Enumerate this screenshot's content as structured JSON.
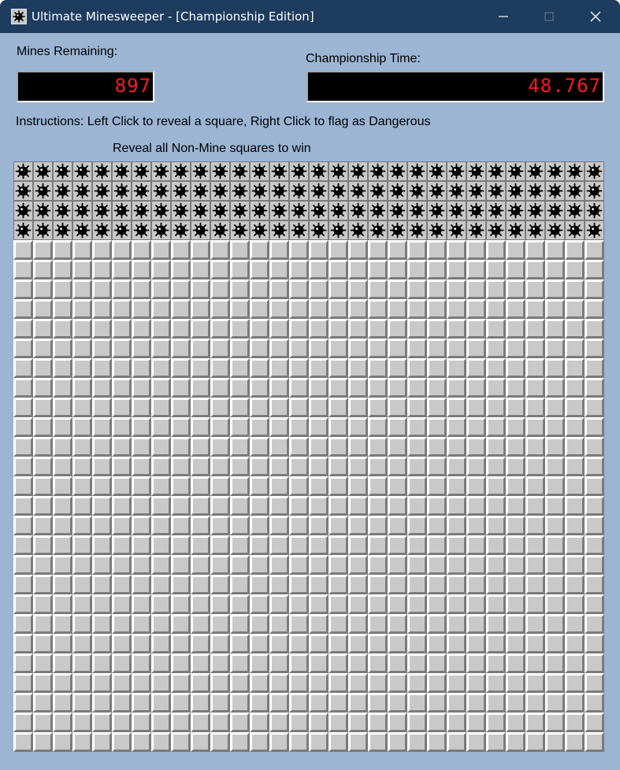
{
  "window": {
    "title": "Ultimate Minesweeper - [Championship Edition]",
    "app_icon": "mine-icon",
    "controls": [
      "minimize-icon",
      "maximize-icon",
      "close-icon"
    ]
  },
  "mines_remaining": {
    "label": "Mines Remaining:",
    "value": "897"
  },
  "championship_time": {
    "label": "Championship Time:",
    "value": "48.767"
  },
  "instructions": "Instructions: Left Click to reveal a square, Right Click to flag as Dangerous",
  "win_condition": "Reveal all Non-Mine squares to win",
  "board": {
    "columns": 30,
    "rows": 30,
    "revealed_mine_rows": 4,
    "mine_icon": "mine-icon",
    "colors": {
      "window_bg": "#9bb5d3",
      "titlebar": "#1d3c5e",
      "counter_text": "#ff1a1a"
    }
  }
}
